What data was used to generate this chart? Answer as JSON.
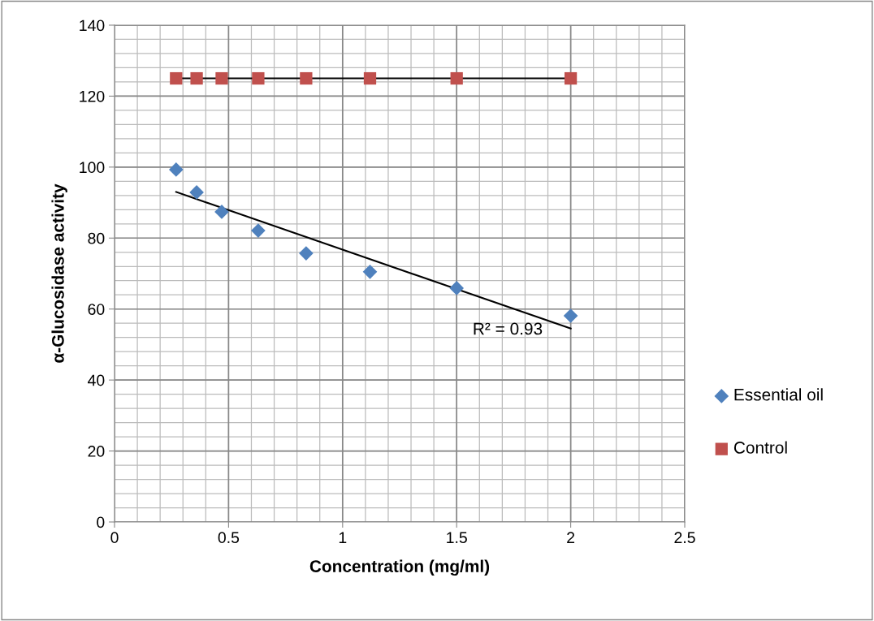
{
  "chart_data": {
    "type": "scatter",
    "xlabel": "Concentration (mg/ml)",
    "ylabel": "α-Glucosidase activity",
    "xlim": [
      0,
      2.5
    ],
    "xticks": [
      0,
      0.5,
      1,
      1.5,
      2,
      2.5
    ],
    "ylim": [
      0,
      140
    ],
    "yticks": [
      0,
      20,
      40,
      60,
      80,
      100,
      120,
      140
    ],
    "grid": true,
    "legend": "right",
    "series": [
      {
        "name": "Essential oil",
        "marker": "diamond",
        "color": "#4f81bd",
        "x": [
          0.27,
          0.36,
          0.47,
          0.63,
          0.84,
          1.12,
          1.5,
          2.0
        ],
        "values": [
          99.3,
          92.9,
          87.4,
          82.1,
          75.7,
          70.5,
          65.9,
          58.1
        ]
      },
      {
        "name": "Control",
        "marker": "square",
        "color": "#c0504d",
        "x": [
          0.27,
          0.36,
          0.47,
          0.63,
          0.84,
          1.12,
          1.5,
          2.0
        ],
        "values": [
          125,
          125,
          125,
          125,
          125,
          125,
          125,
          125
        ]
      },
      {
        "type": "line",
        "color": "#000000",
        "x": [
          0.27,
          2.0
        ],
        "values": [
          93,
          54.5
        ]
      },
      {
        "type": "line",
        "color": "#000000",
        "x": [
          0.27,
          2.0
        ],
        "values": [
          125,
          125
        ]
      }
    ],
    "annotations": [
      "R² = 0.93"
    ]
  }
}
